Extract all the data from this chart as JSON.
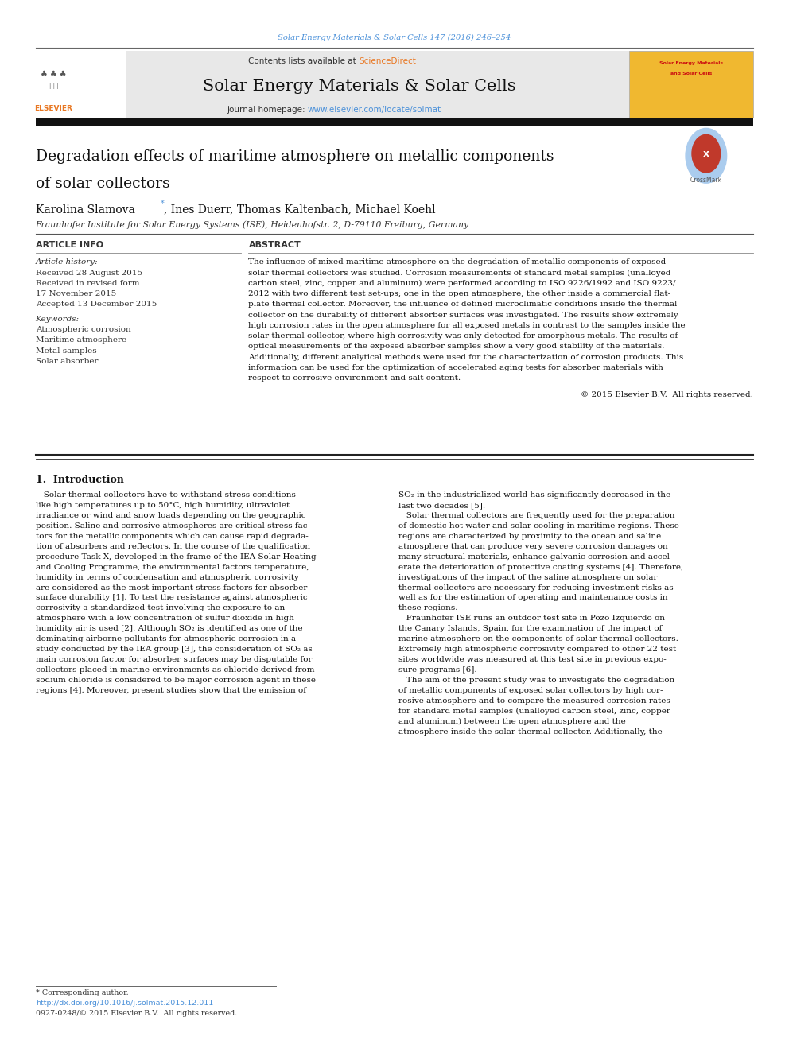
{
  "page_width": 9.92,
  "page_height": 13.23,
  "bg_color": "#ffffff",
  "top_journal_ref": "Solar Energy Materials & Solar Cells 147 (2016) 246–254",
  "top_ref_color": "#4a90d9",
  "header_bg_color": "#e8e8e8",
  "header_contents_pre": "Contents lists available at ",
  "header_sciencedirect": "ScienceDirect",
  "header_sciencedirect_color": "#e87722",
  "header_journal_title": "Solar Energy Materials & Solar Cells",
  "header_homepage_pre": "journal homepage: ",
  "header_homepage_url": "www.elsevier.com/locate/solmat",
  "header_url_color": "#4a90d9",
  "article_title_line1": "Degradation effects of maritime atmosphere on metallic components",
  "article_title_line2": "of solar collectors",
  "authors_main": "Karolina Slamova",
  "authors_rest": ", Ines Duerr, Thomas Kaltenbach, Michael Koehl",
  "affiliation": "Fraunhofer Institute for Solar Energy Systems (ISE), Heidenhofstr. 2, D-79110 Freiburg, Germany",
  "article_info_header": "ARTICLE INFO",
  "abstract_header": "ABSTRACT",
  "article_history_label": "Article history:",
  "history_lines": [
    "Received 28 August 2015",
    "Received in revised form",
    "17 November 2015",
    "Accepted 13 December 2015"
  ],
  "keywords_label": "Keywords:",
  "keywords": [
    "Atmospheric corrosion",
    "Maritime atmosphere",
    "Metal samples",
    "Solar absorber"
  ],
  "abstract_lines": [
    "The influence of mixed maritime atmosphere on the degradation of metallic components of exposed",
    "solar thermal collectors was studied. Corrosion measurements of standard metal samples (unalloyed",
    "carbon steel, zinc, copper and aluminum) were performed according to ISO 9226/1992 and ISO 9223/",
    "2012 with two different test set-ups; one in the open atmosphere, the other inside a commercial flat-",
    "plate thermal collector. Moreover, the influence of defined microclimatic conditions inside the thermal",
    "collector on the durability of different absorber surfaces was investigated. The results show extremely",
    "high corrosion rates in the open atmosphere for all exposed metals in contrast to the samples inside the",
    "solar thermal collector, where high corrosivity was only detected for amorphous metals. The results of",
    "optical measurements of the exposed absorber samples show a very good stability of the materials.",
    "Additionally, different analytical methods were used for the characterization of corrosion products. This",
    "information can be used for the optimization of accelerated aging tests for absorber materials with",
    "respect to corrosive environment and salt content."
  ],
  "copyright": "© 2015 Elsevier B.V.  All rights reserved.",
  "section1_title": "1.  Introduction",
  "intro_left_lines": [
    "   Solar thermal collectors have to withstand stress conditions",
    "like high temperatures up to 50°C, high humidity, ultraviolet",
    "irradiance or wind and snow loads depending on the geographic",
    "position. Saline and corrosive atmospheres are critical stress fac-",
    "tors for the metallic components which can cause rapid degrada-",
    "tion of absorbers and reflectors. In the course of the qualification",
    "procedure Task X, developed in the frame of the IEA Solar Heating",
    "and Cooling Programme, the environmental factors temperature,",
    "humidity in terms of condensation and atmospheric corrosivity",
    "are considered as the most important stress factors for absorber",
    "surface durability [1]. To test the resistance against atmospheric",
    "corrosivity a standardized test involving the exposure to an",
    "atmosphere with a low concentration of sulfur dioxide in high",
    "humidity air is used [2]. Although SO₂ is identified as one of the",
    "dominating airborne pollutants for atmospheric corrosion in a",
    "study conducted by the IEA group [3], the consideration of SO₂ as",
    "main corrosion factor for absorber surfaces may be disputable for",
    "collectors placed in marine environments as chloride derived from",
    "sodium chloride is considered to be major corrosion agent in these",
    "regions [4]. Moreover, present studies show that the emission of"
  ],
  "intro_right_lines": [
    "SO₂ in the industrialized world has significantly decreased in the",
    "last two decades [5].",
    "   Solar thermal collectors are frequently used for the preparation",
    "of domestic hot water and solar cooling in maritime regions. These",
    "regions are characterized by proximity to the ocean and saline",
    "atmosphere that can produce very severe corrosion damages on",
    "many structural materials, enhance galvanic corrosion and accel-",
    "erate the deterioration of protective coating systems [4]. Therefore,",
    "investigations of the impact of the saline atmosphere on solar",
    "thermal collectors are necessary for reducing investment risks as",
    "well as for the estimation of operating and maintenance costs in",
    "these regions.",
    "   Fraunhofer ISE runs an outdoor test site in Pozo Izquierdo on",
    "the Canary Islands, Spain, for the examination of the impact of",
    "marine atmosphere on the components of solar thermal collectors.",
    "Extremely high atmospheric corrosivity compared to other 22 test",
    "sites worldwide was measured at this test site in previous expo-",
    "sure programs [6].",
    "   The aim of the present study was to investigate the degradation",
    "of metallic components of exposed solar collectors by high cor-",
    "rosive atmosphere and to compare the measured corrosion rates",
    "for standard metal samples (unalloyed carbon steel, zinc, copper",
    "and aluminum) between the open atmosphere and the",
    "atmosphere inside the solar thermal collector. Additionally, the"
  ],
  "footnote_star": "* Corresponding author.",
  "footnote_doi": "http://dx.doi.org/10.1016/j.solmat.2015.12.011",
  "footnote_issn": "0927-0248/© 2015 Elsevier B.V.  All rights reserved.",
  "link_color": "#4a90d9",
  "text_color": "#111111",
  "meta_text_color": "#333333"
}
